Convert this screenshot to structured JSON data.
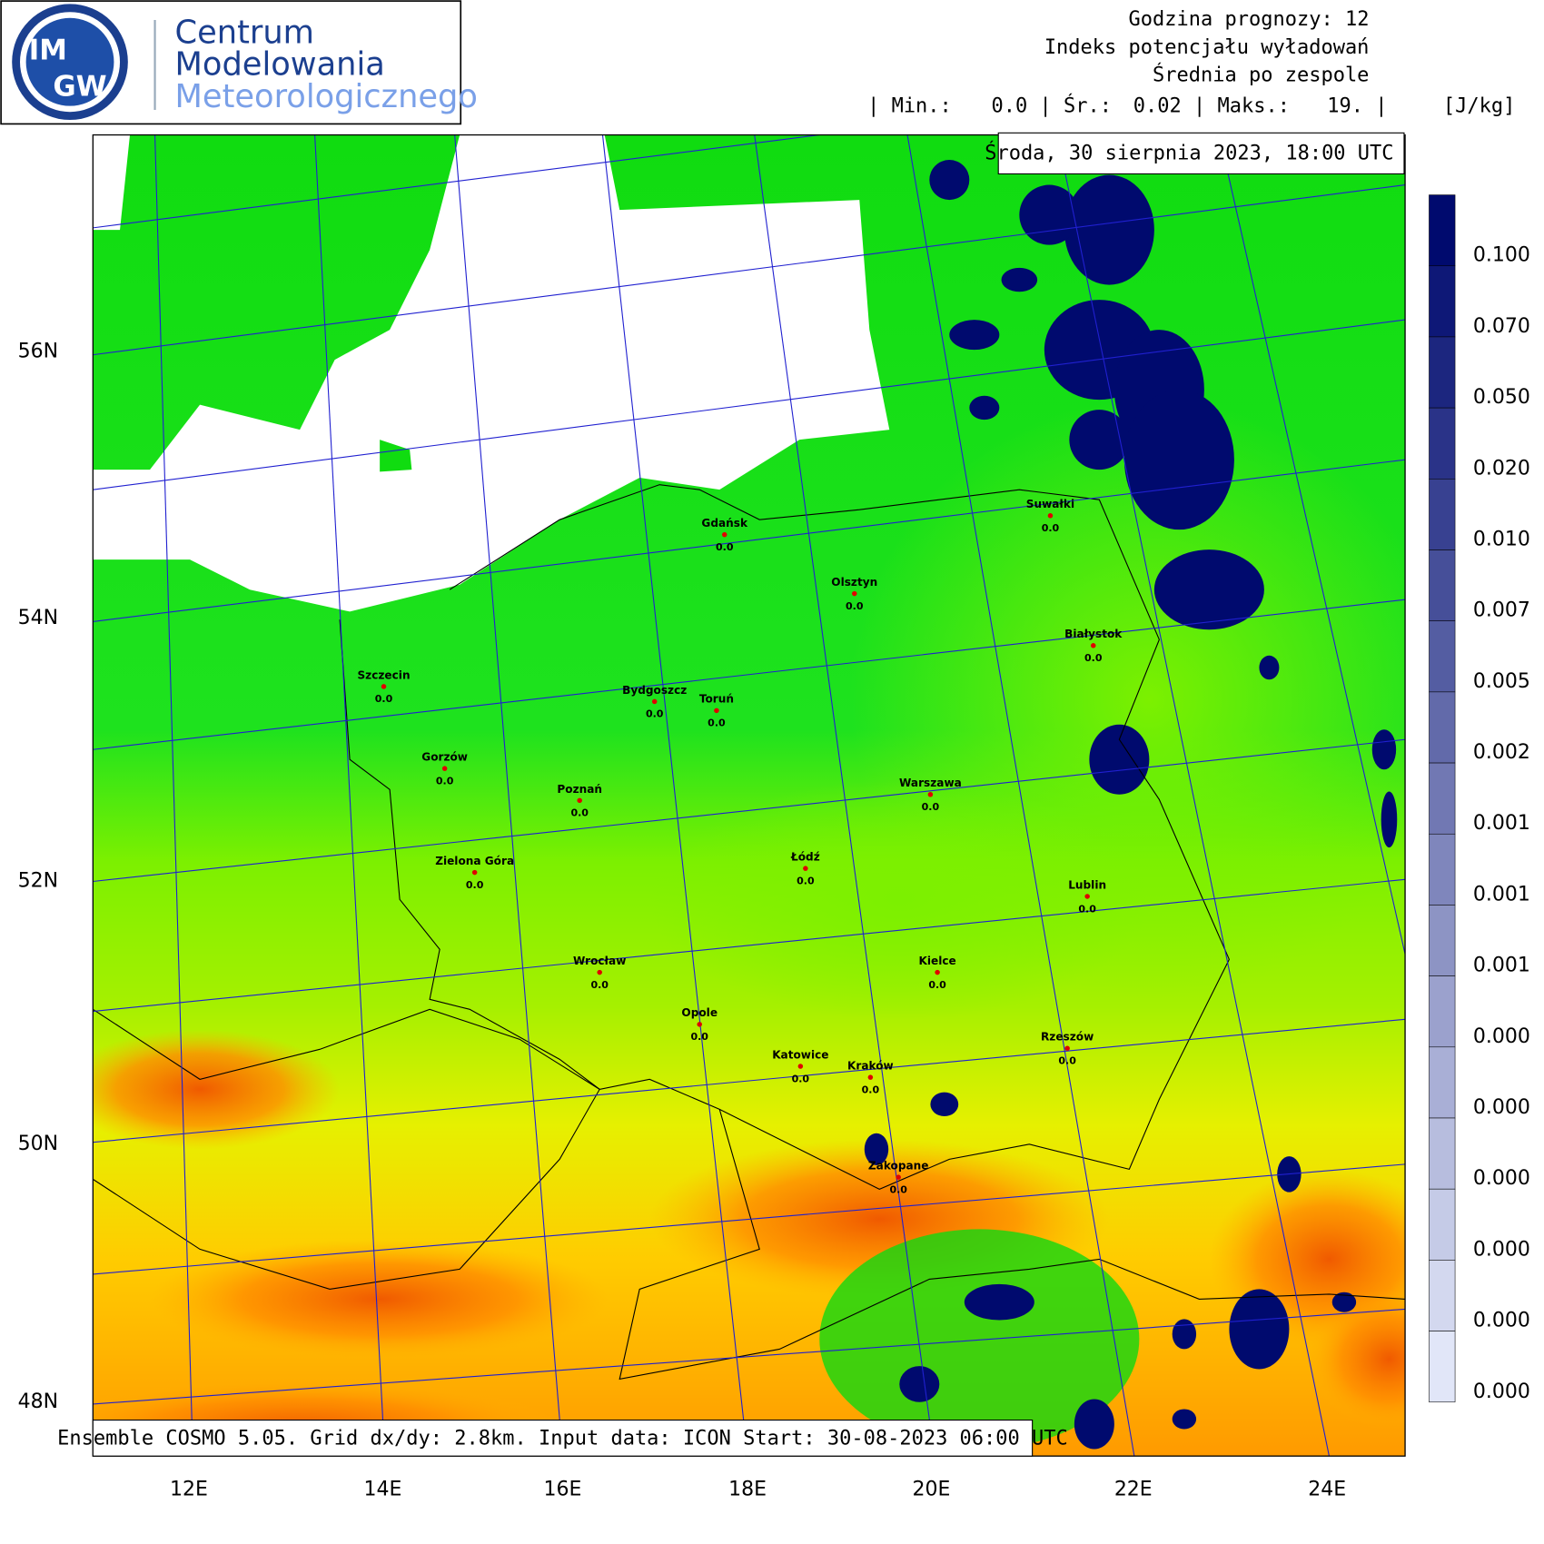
{
  "logo": {
    "badge_top": "IM",
    "badge_bottom": "GW",
    "line1": "Centrum",
    "line2": "Modelowania",
    "line3": "Meteorologicznego"
  },
  "header": {
    "forecast_hour": "Godzina prognozy: 12",
    "field": "Indeks potencjału wyładowań",
    "statistic": "Średnia po zespole",
    "min_label": "| Min.:",
    "min_value": "0.0 | Śr.:",
    "mean_value": "0.02 | Maks.:",
    "max_value": "19. |",
    "unit": "[J/kg]"
  },
  "date": "Środa, 30 sierpnia 2023, 18:00 UTC",
  "footer": "Ensemble COSMO 5.05. Grid dx/dy: 2.8km. Input data: ICON Start: 30-08-2023 06:00 UTC",
  "colorbar": {
    "labels": [
      "0.100",
      "0.070",
      "0.050",
      "0.020",
      "0.010",
      "0.007",
      "0.005",
      "0.002",
      "0.001",
      "0.001",
      "0.001",
      "0.000",
      "0.000",
      "0.000",
      "0.000",
      "0.000",
      "0.000"
    ]
  },
  "latitude_labels": [
    "56N",
    "54N",
    "52N",
    "50N",
    "48N"
  ],
  "longitude_labels": [
    "12E",
    "14E",
    "16E",
    "18E",
    "20E",
    "22E",
    "24E"
  ],
  "cities": [
    {
      "name": "Gdańsk",
      "value": "0.0"
    },
    {
      "name": "Olsztyn",
      "value": "0.0"
    },
    {
      "name": "Suwałki",
      "value": "0.0"
    },
    {
      "name": "Białystok",
      "value": "0.0"
    },
    {
      "name": "Szczecin",
      "value": "0.0"
    },
    {
      "name": "Bydgoszcz",
      "value": "0.0"
    },
    {
      "name": "Toruń",
      "value": "0.0"
    },
    {
      "name": "Gorzów",
      "value": "0.0"
    },
    {
      "name": "Poznań",
      "value": "0.0"
    },
    {
      "name": "Warszawa",
      "value": "0.0"
    },
    {
      "name": "Zielona Góra",
      "value": "0.0"
    },
    {
      "name": "Łódź",
      "value": "0.0"
    },
    {
      "name": "Lublin",
      "value": "0.0"
    },
    {
      "name": "Wrocław",
      "value": "0.0"
    },
    {
      "name": "Kielce",
      "value": "0.0"
    },
    {
      "name": "Opole",
      "value": "0.0"
    },
    {
      "name": "Rzeszów",
      "value": "0.0"
    },
    {
      "name": "Katowice",
      "value": "0.0"
    },
    {
      "name": "Kraków",
      "value": "0.0"
    },
    {
      "name": "Zakopane",
      "value": "0.0"
    }
  ]
}
